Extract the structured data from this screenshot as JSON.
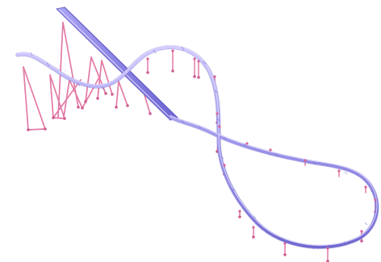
{
  "scene": {
    "colors": {
      "background": "#ffffff",
      "track_rail": "#8d86e0",
      "track_rail_light": "#b9b2f4",
      "track_shadow": "#6f68c8",
      "support": "#e47aa6",
      "support_dark": "#cf5d91",
      "lift_hill_fill": "#8e84e8",
      "lift_hill_edge": "#7068d3"
    }
  }
}
